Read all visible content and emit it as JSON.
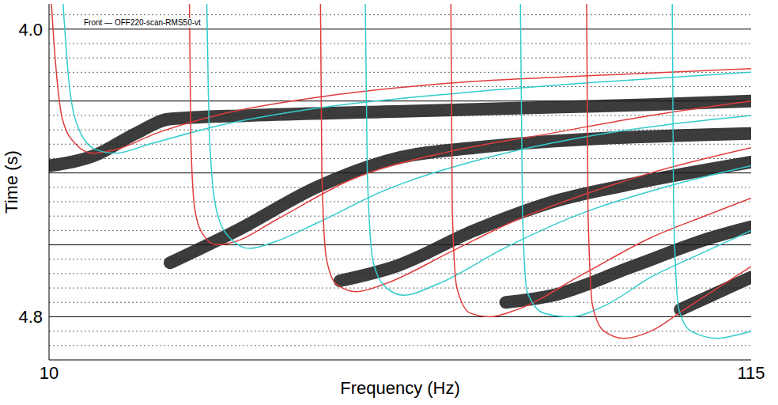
{
  "chart_data": {
    "type": "line",
    "title": "Front — OFF220-scan-RMS50-vt",
    "x_label": "Frequency (Hz)",
    "y_label": "Time (s)",
    "xlim": [
      10,
      115
    ],
    "ylim": [
      4.92,
      3.93
    ],
    "xticks": [
      10,
      115
    ],
    "yticks": [
      {
        "value": 4.0,
        "label": "4.0"
      },
      4.8
    ],
    "grid": true,
    "grid_lines": {
      "major": [
        4.0,
        4.2,
        4.4,
        4.6,
        4.8
      ],
      "minor": [
        3.96,
        4.04,
        4.08,
        4.12,
        4.16,
        4.24,
        4.28,
        4.32,
        4.36,
        4.44,
        4.48,
        4.52,
        4.56,
        4.64,
        4.68,
        4.72,
        4.76,
        4.84,
        4.88
      ]
    },
    "bands": [
      {
        "color": "#1a1a1a",
        "x": [
          10,
          17,
          23,
          28,
          40,
          60,
          80,
          100,
          115
        ],
        "values": [
          4.38,
          4.35,
          4.29,
          4.25,
          4.24,
          4.23,
          4.22,
          4.21,
          4.2
        ]
      },
      {
        "color": "#1a1a1a",
        "x": [
          28.1,
          38.1,
          50,
          61.8,
          73.6,
          115
        ],
        "values": [
          4.65,
          4.56,
          4.44,
          4.36,
          4.33,
          4.29
        ]
      },
      {
        "color": "#1a1a1a",
        "x": [
          53.5,
          61.8,
          73.6,
          85.4,
          97.3,
          115
        ],
        "values": [
          4.7,
          4.66,
          4.56,
          4.48,
          4.43,
          4.37
        ]
      },
      {
        "color": "#1a1a1a",
        "x": [
          78.3,
          85.4,
          97.3,
          109.1,
          115
        ],
        "values": [
          4.76,
          4.74,
          4.66,
          4.58,
          4.55
        ]
      },
      {
        "color": "#1a1a1a",
        "x": [
          104.4,
          115
        ],
        "values": [
          4.78,
          4.69
        ]
      }
    ],
    "series": [
      {
        "color": "#e03c3c",
        "x": [
          10.35,
          11,
          12,
          14,
          16.5,
          20,
          26,
          35,
          50,
          70,
          90,
          115
        ],
        "values": [
          3.93,
          4.1,
          4.25,
          4.32,
          4.345,
          4.335,
          4.29,
          4.24,
          4.19,
          4.15,
          4.13,
          4.11
        ]
      },
      {
        "color": "#33cccc",
        "x": [
          12.1,
          13,
          14.5,
          17,
          20,
          25,
          35,
          50,
          70,
          90,
          115
        ],
        "values": [
          3.93,
          4.15,
          4.28,
          4.335,
          4.345,
          4.32,
          4.27,
          4.22,
          4.18,
          4.15,
          4.12
        ]
      },
      {
        "color": "#e03c3c",
        "x": [
          31,
          31.2,
          31.8,
          33,
          35,
          38,
          44,
          55,
          70,
          85,
          100,
          115
        ],
        "values": [
          3.93,
          4.3,
          4.5,
          4.57,
          4.6,
          4.59,
          4.53,
          4.42,
          4.34,
          4.29,
          4.24,
          4.2
        ]
      },
      {
        "color": "#33cccc",
        "x": [
          33.6,
          34,
          35,
          37,
          40,
          44,
          50,
          60,
          75,
          90,
          105,
          115
        ],
        "values": [
          3.93,
          4.3,
          4.5,
          4.58,
          4.61,
          4.59,
          4.54,
          4.45,
          4.36,
          4.3,
          4.26,
          4.24
        ]
      },
      {
        "color": "#e03c3c",
        "x": [
          50.6,
          50.8,
          51.5,
          53,
          56,
          60,
          70,
          80,
          90,
          100,
          115
        ],
        "values": [
          3.93,
          4.4,
          4.64,
          4.71,
          4.73,
          4.71,
          4.62,
          4.53,
          4.46,
          4.4,
          4.33
        ]
      },
      {
        "color": "#33cccc",
        "x": [
          57.3,
          57.6,
          58.5,
          60.5,
          63,
          68,
          78,
          90,
          102,
          115
        ],
        "values": [
          3.93,
          4.4,
          4.65,
          4.72,
          4.74,
          4.71,
          4.61,
          4.51,
          4.44,
          4.38
        ]
      },
      {
        "color": "#e03c3c",
        "x": [
          70.1,
          70.3,
          71,
          73,
          76,
          80,
          90,
          100,
          108,
          115
        ],
        "values": [
          3.93,
          4.5,
          4.72,
          4.79,
          4.8,
          4.78,
          4.68,
          4.58,
          4.52,
          4.47
        ]
      },
      {
        "color": "#33cccc",
        "x": [
          80.5,
          80.8,
          81.5,
          84,
          88,
          93,
          100,
          108,
          115
        ],
        "values": [
          3.93,
          4.5,
          4.73,
          4.79,
          4.8,
          4.77,
          4.69,
          4.62,
          4.56
        ]
      },
      {
        "color": "#e03c3c",
        "x": [
          90.4,
          90.6,
          91.3,
          93,
          96,
          100,
          105,
          110,
          115
        ],
        "values": [
          3.93,
          4.5,
          4.77,
          4.84,
          4.86,
          4.84,
          4.78,
          4.72,
          4.66
        ]
      },
      {
        "color": "#33cccc",
        "x": [
          103.2,
          103.4,
          104.2,
          106,
          110,
          113,
          115
        ],
        "values": [
          3.93,
          4.5,
          4.78,
          4.84,
          4.86,
          4.85,
          4.84
        ]
      }
    ]
  }
}
